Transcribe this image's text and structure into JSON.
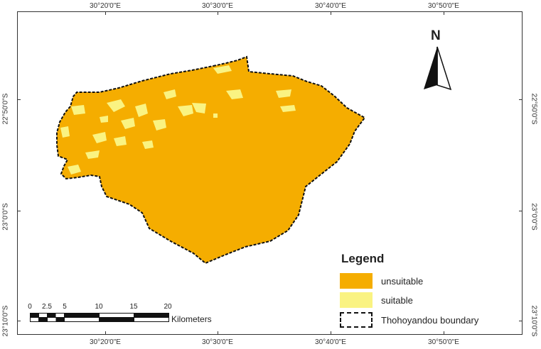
{
  "map": {
    "top_ticks": [
      "30°20'0\"E",
      "30°30'0\"E",
      "30°40'0\"E",
      "30°50'0\"E"
    ],
    "bottom_ticks": [
      "30°20'0\"E",
      "30°30'0\"E",
      "30°40'0\"E",
      "30°50'0\"E"
    ],
    "left_ticks": [
      "22°50'0\"S",
      "23°0'0\"S",
      "23°10'0\"S"
    ],
    "right_ticks": [
      "22°50'0\"S",
      "23°0'0\"S",
      "23°10'0\"S"
    ],
    "north_label": "N"
  },
  "legend": {
    "title": "Legend",
    "items": [
      {
        "label": "unsuitable",
        "color": "#f5ad00"
      },
      {
        "label": "suitable",
        "color": "#faf382"
      },
      {
        "label": "Thohoyandou boundary",
        "color": "#ffffff"
      }
    ]
  },
  "scale": {
    "numbers": [
      "0",
      "2.5",
      "5",
      "10",
      "15",
      "20"
    ],
    "unit": "Kilometers"
  },
  "colors": {
    "unsuitable": "#f5ad00",
    "suitable": "#faf382",
    "boundary": "#111111"
  }
}
